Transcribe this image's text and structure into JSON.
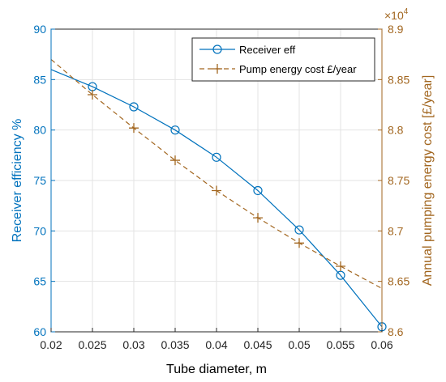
{
  "chart_data": {
    "type": "line",
    "xlabel": "Tube diameter, m",
    "ylabel_left": "Receiver efficiency %",
    "ylabel_right": "Annual pumping energy cost [£/year]",
    "right_exponent_base": "×10",
    "right_exponent_power": "4",
    "xlim": [
      0.02,
      0.06
    ],
    "ylim_left": [
      60,
      90
    ],
    "ylim_right": [
      8.6,
      8.9
    ],
    "x_ticks": [
      "0.02",
      "0.025",
      "0.03",
      "0.035",
      "0.04",
      "0.045",
      "0.05",
      "0.055",
      "0.06"
    ],
    "y_ticks_left": [
      "60",
      "65",
      "70",
      "75",
      "80",
      "85",
      "90"
    ],
    "y_ticks_right": [
      "8.6",
      "8.65",
      "8.7",
      "8.75",
      "8.8",
      "8.85",
      "8.9"
    ],
    "grid": true,
    "legend_position": "top-right",
    "colors": {
      "left_axis": "#0072BD",
      "right_axis": "#A2661F"
    },
    "series": [
      {
        "name": "Receiver eff",
        "axis": "left",
        "style": "solid-circle",
        "color": "#0072BD",
        "x": [
          0.02,
          0.025,
          0.03,
          0.035,
          0.04,
          0.045,
          0.05,
          0.055,
          0.06
        ],
        "y": [
          86.0,
          84.3,
          82.3,
          80.0,
          77.3,
          74.0,
          70.1,
          65.6,
          60.5
        ],
        "markers": [
          false,
          true,
          true,
          true,
          true,
          true,
          true,
          true,
          true
        ]
      },
      {
        "name": "Pump energy cost £/year",
        "axis": "right",
        "style": "dashed-plus",
        "color": "#A2661F",
        "x": [
          0.02,
          0.025,
          0.03,
          0.035,
          0.04,
          0.045,
          0.05,
          0.055,
          0.06
        ],
        "y": [
          8.87,
          8.835,
          8.802,
          8.77,
          8.74,
          8.713,
          8.688,
          8.665,
          8.643
        ],
        "markers": [
          false,
          true,
          true,
          true,
          true,
          true,
          true,
          true,
          false
        ]
      }
    ]
  }
}
